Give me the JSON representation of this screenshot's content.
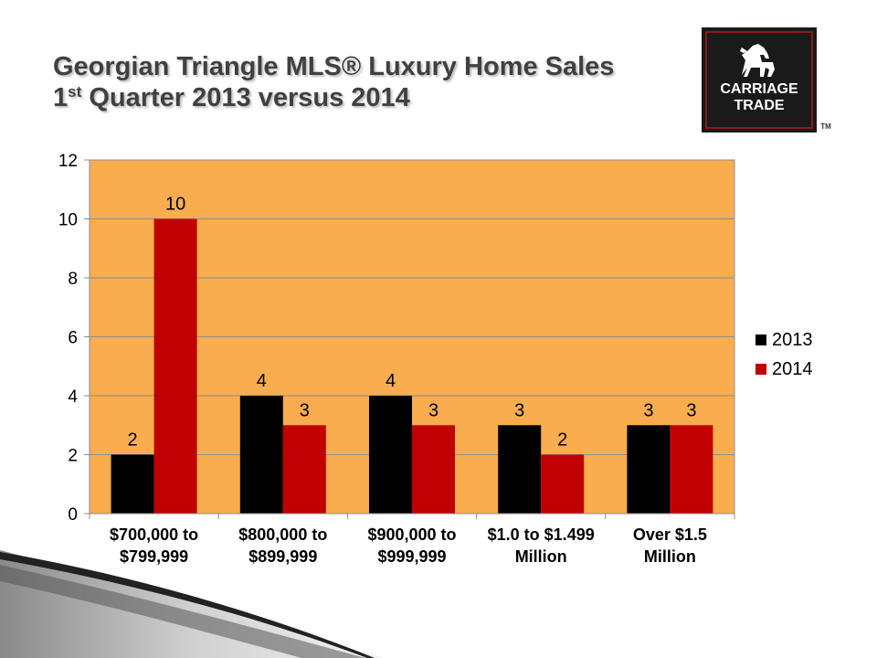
{
  "title": {
    "line1": "Georgian Triangle MLS® Luxury Home Sales",
    "line2_num": "1",
    "line2_sup": "st",
    "line2_rest": " Quarter 2013 versus 2014"
  },
  "logo": {
    "line1": "CARRIAGE",
    "line2": "TRADE",
    "trademark": "TM",
    "icon": "horse-icon"
  },
  "colors": {
    "plot_background": "#F9AD4E",
    "series_2013": "#000000",
    "series_2014": "#C00000",
    "logo_background": "#1a1a1a",
    "logo_border": "#8b1a1a"
  },
  "chart_data": {
    "type": "bar",
    "categories": [
      [
        "$700,000 to",
        "$799,999"
      ],
      [
        "$800,000 to",
        "$899,999"
      ],
      [
        "$900,000 to",
        "$999,999"
      ],
      [
        "$1.0 to  $1.499",
        "Million"
      ],
      [
        "Over $1.5",
        "Million"
      ]
    ],
    "series": [
      {
        "name": "2013",
        "values": [
          2,
          4,
          4,
          3,
          3
        ]
      },
      {
        "name": "2014",
        "values": [
          10,
          3,
          3,
          2,
          3
        ]
      }
    ],
    "y_ticks": [
      "0",
      "2",
      "4",
      "6",
      "8",
      "10",
      "12"
    ],
    "ylim": [
      0,
      12
    ],
    "grid": true,
    "legend_position": "right"
  }
}
